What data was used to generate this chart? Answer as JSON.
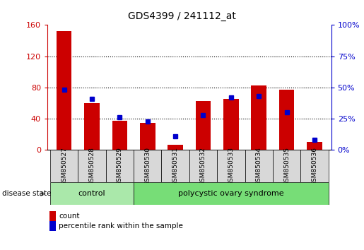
{
  "title": "GDS4399 / 241112_at",
  "samples": [
    "GSM850527",
    "GSM850528",
    "GSM850529",
    "GSM850530",
    "GSM850531",
    "GSM850532",
    "GSM850533",
    "GSM850534",
    "GSM850535",
    "GSM850536"
  ],
  "count_values": [
    152,
    60,
    37,
    35,
    7,
    63,
    65,
    83,
    77,
    10
  ],
  "percentile_values": [
    48,
    41,
    26,
    23,
    11,
    28,
    42,
    43,
    30,
    8
  ],
  "left_ylim": [
    0,
    160
  ],
  "left_yticks": [
    0,
    40,
    80,
    120,
    160
  ],
  "right_ylim": [
    0,
    100
  ],
  "right_yticks": [
    0,
    25,
    50,
    75,
    100
  ],
  "right_yticklabels": [
    "0%",
    "25%",
    "50%",
    "75%",
    "100%"
  ],
  "bar_color_red": "#cc0000",
  "bar_color_blue": "#0000cc",
  "left_tick_color": "#cc0000",
  "right_tick_color": "#0000cc",
  "grid_color": "#000000",
  "control_samples": 3,
  "total_samples": 10,
  "control_label": "control",
  "disease_label": "polycystic ovary syndrome",
  "control_color": "#aae8aa",
  "disease_color": "#77dd77",
  "disease_state_label": "disease state",
  "legend_count": "count",
  "legend_percentile": "percentile rank within the sample",
  "bar_width": 0.55,
  "figure_width": 5.15,
  "figure_height": 3.54
}
